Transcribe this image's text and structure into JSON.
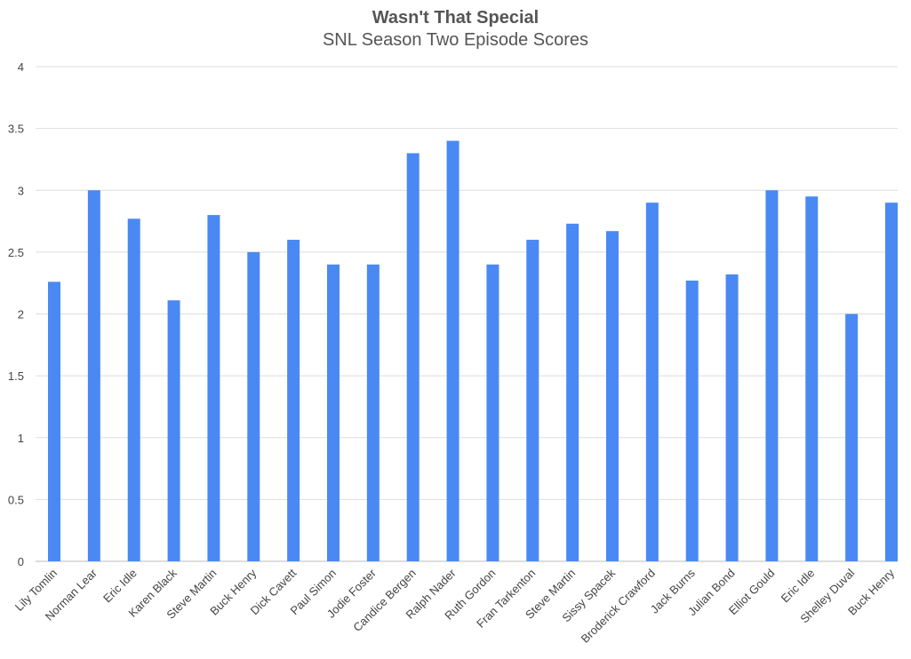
{
  "chart_data": {
    "type": "bar",
    "title": "Wasn't That Special",
    "subtitle": "SNL Season Two Episode Scores",
    "xlabel": "",
    "ylabel": "",
    "ylim": [
      0,
      4
    ],
    "yticks": [
      "0",
      "0.5",
      "1",
      "1.5",
      "2",
      "2.5",
      "3",
      "3.5",
      "4"
    ],
    "grid": true,
    "bar_color": "#4a89f3",
    "categories": [
      "Lily Tomlin",
      "Norman Lear",
      "Eric Idle",
      "Karen Black",
      "Steve Martin",
      "Buck Henry",
      "Dick Cavett",
      "Paul Simon",
      "Jodie Foster",
      "Candice Bergen",
      "Ralph Nader",
      "Ruth Gordon",
      "Fran Tarkenton",
      "Steve Martin",
      "Sissy Spacek",
      "Broderick Crawford",
      "Jack Burns",
      "Julian Bond",
      "Elliot Gould",
      "Eric Idle",
      "Shelley Duval",
      "Buck Henry"
    ],
    "values": [
      2.26,
      3.0,
      2.77,
      2.11,
      2.8,
      2.5,
      2.6,
      2.4,
      2.4,
      3.3,
      3.4,
      2.4,
      2.6,
      2.73,
      2.67,
      2.9,
      2.27,
      2.32,
      3.0,
      2.95,
      2.0,
      2.9
    ]
  }
}
